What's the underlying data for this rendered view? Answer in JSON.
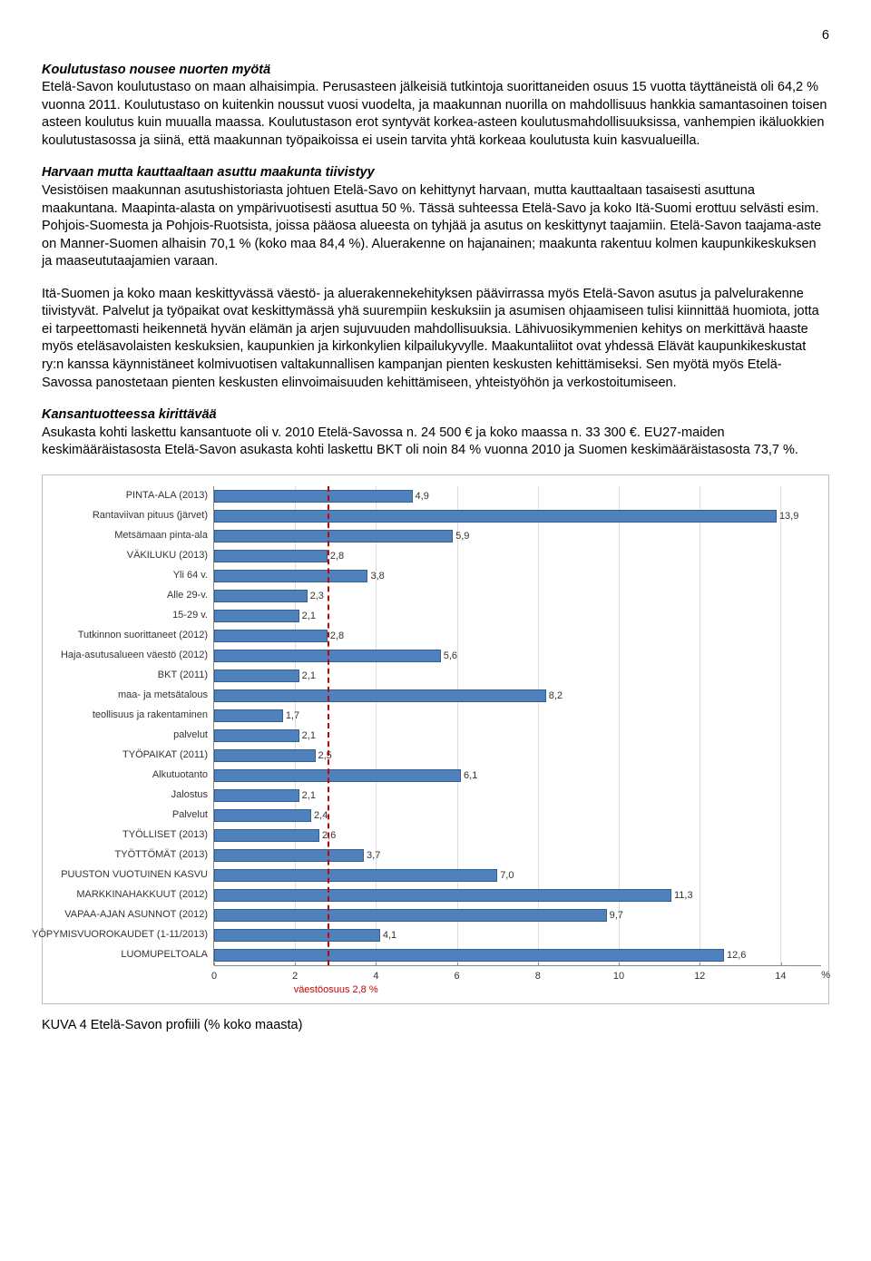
{
  "page_number": "6",
  "section1": {
    "heading": "Koulutustaso nousee nuorten myötä",
    "body": "Etelä-Savon koulutustaso on maan alhaisimpia. Perusasteen jälkeisiä tutkintoja suorittaneiden osuus 15 vuotta täyttäneistä oli 64,2 % vuonna 2011. Koulutustaso on kuitenkin noussut vuosi vuodelta, ja maakunnan nuorilla on mahdollisuus hankkia samantasoinen toisen asteen koulutus kuin muualla maassa. Koulutustason erot syntyvät korkea-asteen koulutusmahdollisuuksissa, vanhempien ikäluokkien koulutustasossa ja siinä, että maakunnan työpaikoissa ei usein tarvita yhtä korkeaa koulutusta kuin kasvualueilla."
  },
  "section2": {
    "heading": "Harvaan mutta kauttaaltaan asuttu maakunta tiivistyy",
    "body": "Vesistöisen maakunnan asutushistoriasta johtuen Etelä-Savo on kehittynyt harvaan, mutta kauttaaltaan tasaisesti asuttuna maakuntana. Maapinta-alasta on ympärivuotisesti asuttua 50 %. Tässä suhteessa Etelä-Savo ja koko Itä-Suomi erottuu selvästi esim. Pohjois-Suomesta ja Pohjois-Ruotsista, joissa pääosa alueesta on tyhjää ja asutus on keskittynyt taajamiin. Etelä-Savon taajama-aste on Manner-Suomen alhaisin 70,1 % (koko maa 84,4 %). Aluerakenne on hajanainen; maakunta rakentuu kolmen kaupunkikeskuksen ja maaseututaajamien varaan."
  },
  "para3": "Itä-Suomen ja koko maan keskittyvässä väestö- ja aluerakennekehityksen päävirrassa myös Etelä-Savon asutus ja palvelurakenne tiivistyvät. Palvelut ja työpaikat ovat keskittymässä yhä suurempiin keskuksiin ja asumisen ohjaamiseen tulisi kiinnittää huomiota, jotta ei tarpeettomasti heikennetä hyvän elämän ja arjen sujuvuuden mahdollisuuksia. Lähivuosikymmenien kehitys on merkittävä haaste myös eteläsavolaisten keskuksien, kaupunkien ja kirkonkylien kilpailukyvylle. Maakuntaliitot ovat yhdessä Elävät kaupunkikeskustat ry:n kanssa käynnistäneet kolmivuotisen valtakunnallisen kampanjan pienten keskusten kehittämiseksi. Sen myötä myös Etelä-Savossa panostetaan pienten keskusten elinvoimaisuuden kehittämiseen, yhteistyöhön ja verkostoitumiseen.",
  "section4": {
    "heading": "Kansantuotteessa kirittävää",
    "body": "Asukasta kohti laskettu kansantuote oli v. 2010 Etelä-Savossa n. 24 500 € ja koko maassa n. 33 300 €. EU27-maiden keskimääräistasosta Etelä-Savon asukasta kohti laskettu BKT oli noin 84 % vuonna 2010 ja Suomen keskimääräistasosta 73,7 %."
  },
  "chart": {
    "type": "horizontal_bar",
    "bar_color": "#4f81bd",
    "bar_border": "#365f91",
    "grid_color": "#dddddd",
    "axis_color": "#888888",
    "ref_line_color": "#cc0000",
    "label_fontsize": 11,
    "x_unit": "%",
    "x_max": 15,
    "x_ticks": [
      0,
      2,
      4,
      6,
      8,
      10,
      12,
      14
    ],
    "ref_value": 2.8,
    "ref_text": "väestöosuus 2,8 %",
    "categories": [
      {
        "label": "PINTA-ALA (2013)",
        "value": 4.9
      },
      {
        "label": "Rantaviivan pituus (järvet)",
        "value": 13.9
      },
      {
        "label": "Metsämaan pinta-ala",
        "value": 5.9
      },
      {
        "label": "VÄKILUKU (2013)",
        "value": 2.8
      },
      {
        "label": "Yli 64 v.",
        "value": 3.8
      },
      {
        "label": "Alle 29-v.",
        "value": 2.3
      },
      {
        "label": "15-29 v.",
        "value": 2.1
      },
      {
        "label": "Tutkinnon suorittaneet (2012)",
        "value": 2.8
      },
      {
        "label": "Haja-asutusalueen väestö (2012)",
        "value": 5.6
      },
      {
        "label": "BKT (2011)",
        "value": 2.1
      },
      {
        "label": "maa- ja metsätalous",
        "value": 8.2
      },
      {
        "label": "teollisuus ja rakentaminen",
        "value": 1.7
      },
      {
        "label": "palvelut",
        "value": 2.1
      },
      {
        "label": "TYÖPAIKAT (2011)",
        "value": 2.5
      },
      {
        "label": "Alkutuotanto",
        "value": 6.1
      },
      {
        "label": "Jalostus",
        "value": 2.1
      },
      {
        "label": "Palvelut",
        "value": 2.4
      },
      {
        "label": "TYÖLLISET (2013)",
        "value": 2.6
      },
      {
        "label": "TYÖTTÖMÄT (2013)",
        "value": 3.7
      },
      {
        "label": "PUUSTON VUOTUINEN KASVU",
        "value": 7.0
      },
      {
        "label": "MARKKINAHAKKUUT (2012)",
        "value": 11.3
      },
      {
        "label": "VAPAA-AJAN ASUNNOT (2012)",
        "value": 9.7
      },
      {
        "label": "YÖPYMISVUOROKAUDET (1-11/2013)",
        "value": 4.1
      },
      {
        "label": "LUOMUPELTOALA",
        "value": 12.6
      }
    ]
  },
  "caption": "KUVA 4 Etelä-Savon profiili (% koko maasta)"
}
